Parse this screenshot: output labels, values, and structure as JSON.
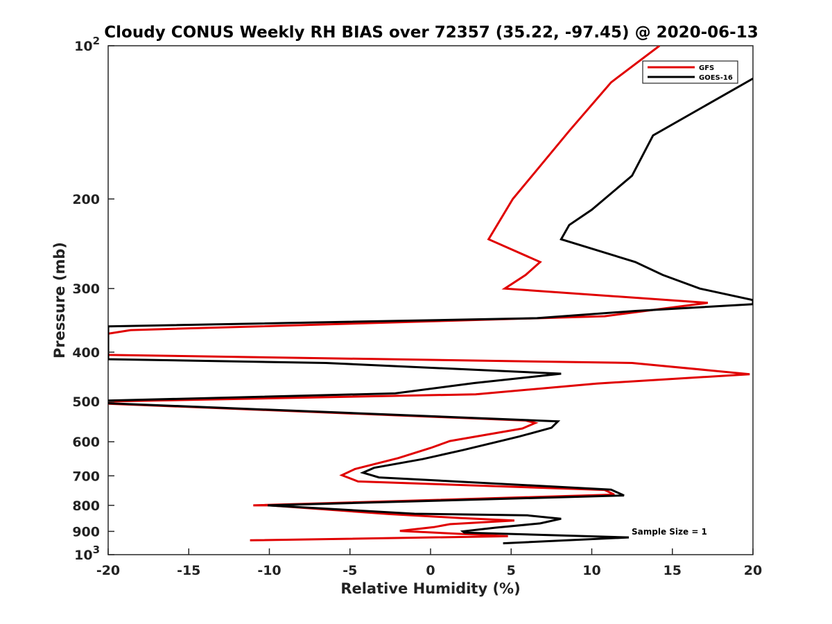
{
  "chart_data": {
    "type": "line",
    "title": "Cloudy CONUS Weekly RH BIAS over 72357 (35.22, -97.45) @ 2020-06-13",
    "xlabel": "Relative Humidity (%)",
    "ylabel": "Pressure (mb)",
    "xlim": [
      -20,
      20
    ],
    "ylim": [
      100,
      1000
    ],
    "y_scale": "log",
    "y_reversed": true,
    "x_ticks": [
      "-20",
      "-15",
      "-10",
      "-5",
      "0",
      "5",
      "10",
      "15",
      "20"
    ],
    "y_tick_labels": [
      {
        "value": 200,
        "label": "200"
      },
      {
        "value": 300,
        "label": "300"
      },
      {
        "value": 400,
        "label": "400"
      },
      {
        "value": 500,
        "label": "500"
      },
      {
        "value": 600,
        "label": "600"
      },
      {
        "value": 700,
        "label": "700"
      },
      {
        "value": 800,
        "label": "800"
      },
      {
        "value": 900,
        "label": "900"
      }
    ],
    "y_power_labels": [
      {
        "value": 100,
        "base": "10",
        "exp": "2"
      },
      {
        "value": 1000,
        "base": "10",
        "exp": "3"
      }
    ],
    "grid": false,
    "legend_position": "top-right",
    "annotation": "Sample Size = 1",
    "series": [
      {
        "name": "GFS",
        "color": "#e00000",
        "points": [
          [
            14.2,
            100
          ],
          [
            11.2,
            118
          ],
          [
            8.6,
            147
          ],
          [
            6.3,
            180
          ],
          [
            5.1,
            200
          ],
          [
            3.6,
            240
          ],
          [
            6.8,
            266
          ],
          [
            5.9,
            282
          ],
          [
            4.6,
            300
          ],
          [
            17.2,
            320
          ],
          [
            10.8,
            340
          ],
          [
            -18.6,
            362
          ],
          [
            -20,
            368
          ],
          [
            -20,
            405
          ],
          [
            12.5,
            420
          ],
          [
            19.8,
            442
          ],
          [
            10.3,
            461
          ],
          [
            2.8,
            484
          ],
          [
            -20,
            500
          ],
          [
            -20,
            505
          ],
          [
            5.9,
            545
          ],
          [
            6.5,
            551
          ],
          [
            5.7,
            565
          ],
          [
            1.2,
            598
          ],
          [
            0.0,
            617
          ],
          [
            -2.0,
            646
          ],
          [
            -4.7,
            679
          ],
          [
            -5.5,
            698
          ],
          [
            -4.5,
            718
          ],
          [
            10.8,
            746
          ],
          [
            11.4,
            762
          ],
          [
            -11.0,
            800
          ],
          [
            -10.0,
            800
          ],
          [
            -2.6,
            832
          ],
          [
            1.8,
            847
          ],
          [
            5.2,
            857
          ],
          [
            1.2,
            871
          ],
          [
            0.2,
            883
          ],
          [
            -1.9,
            898
          ],
          [
            4.8,
            920
          ],
          [
            -11.2,
            937
          ]
        ]
      },
      {
        "name": "GOES-16",
        "color": "#000000",
        "points": [
          [
            20,
            116
          ],
          [
            13.8,
            150
          ],
          [
            12.5,
            180
          ],
          [
            10.0,
            210
          ],
          [
            8.6,
            225
          ],
          [
            8.1,
            240
          ],
          [
            12.7,
            266
          ],
          [
            14.4,
            282
          ],
          [
            16.7,
            300
          ],
          [
            20,
            316
          ],
          [
            20,
            322
          ],
          [
            12.7,
            332
          ],
          [
            6.6,
            343
          ],
          [
            -20,
            356
          ],
          [
            -20,
            413
          ],
          [
            -6.5,
            420
          ],
          [
            8.1,
            441
          ],
          [
            2.7,
            460
          ],
          [
            -2.2,
            482
          ],
          [
            -20,
            498
          ],
          [
            -20,
            504
          ],
          [
            7.9,
            547
          ],
          [
            7.5,
            563
          ],
          [
            5.5,
            586
          ],
          [
            2.0,
            623
          ],
          [
            -0.5,
            649
          ],
          [
            -3.5,
            675
          ],
          [
            -4.2,
            690
          ],
          [
            -3.2,
            705
          ],
          [
            11.2,
            745
          ],
          [
            12.0,
            765
          ],
          [
            -10.1,
            800
          ],
          [
            -1.0,
            831
          ],
          [
            6.0,
            837
          ],
          [
            8.1,
            850
          ],
          [
            6.8,
            868
          ],
          [
            4.0,
            885
          ],
          [
            2.0,
            900
          ],
          [
            2.1,
            905
          ],
          [
            12.3,
            925
          ],
          [
            4.5,
            950
          ]
        ]
      }
    ]
  }
}
